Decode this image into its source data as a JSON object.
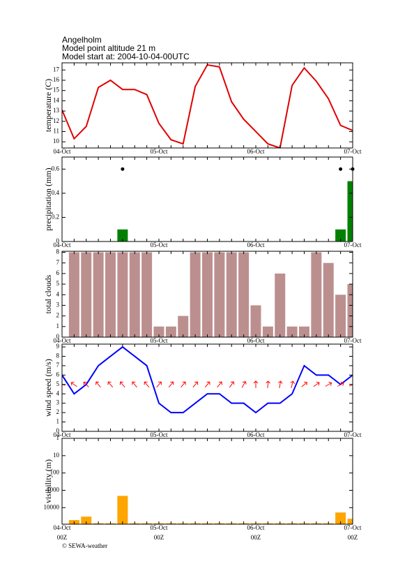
{
  "header": {
    "lines": [
      "Angelholm",
      "Model point altitude  21 m",
      "Model start at: 2004-10-04-00UTC"
    ]
  },
  "footer": "© SEWA-weather",
  "chart_data": [
    {
      "type": "line",
      "ylabel": "temperature (C)",
      "color": "#e00000",
      "categories": [
        "04-Oct",
        null,
        null,
        null,
        null,
        null,
        null,
        null,
        "05-Oct",
        null,
        null,
        null,
        null,
        null,
        null,
        null,
        "06-Oct",
        null,
        null,
        null,
        null,
        null,
        null,
        null,
        "07-Oct"
      ],
      "values": [
        13.1,
        10.3,
        11.5,
        15.3,
        16.0,
        15.1,
        15.1,
        14.6,
        11.8,
        10.2,
        9.8,
        15.4,
        17.5,
        17.3,
        13.9,
        12.2,
        11.0,
        9.8,
        9.4,
        15.5,
        17.2,
        15.9,
        14.2,
        11.6,
        11.1
      ],
      "ylim": [
        9.4,
        17.7
      ],
      "yticks": [
        10,
        11,
        12,
        13,
        14,
        15,
        16,
        17
      ]
    },
    {
      "type": "bar",
      "ylabel": "precipitation (mm)",
      "color": "#008000",
      "categories": [
        "04-Oct",
        null,
        null,
        null,
        null,
        null,
        null,
        null,
        "05-Oct",
        null,
        null,
        null,
        null,
        null,
        null,
        null,
        "06-Oct",
        null,
        null,
        null,
        null,
        null,
        null,
        null,
        "07-Oct"
      ],
      "values": [
        0,
        0,
        0,
        0,
        0,
        0.1,
        0,
        0,
        0,
        0,
        0,
        0,
        0,
        0,
        0,
        0,
        0,
        0,
        0,
        0,
        0,
        0,
        0,
        0.1,
        0.5
      ],
      "points": {
        "color": "#000000",
        "values": [
          null,
          null,
          null,
          null,
          null,
          0.6,
          null,
          null,
          null,
          null,
          null,
          null,
          null,
          null,
          null,
          null,
          null,
          null,
          null,
          null,
          null,
          null,
          null,
          0.6,
          0.6
        ]
      },
      "ylim": [
        0,
        0.7
      ],
      "yticks": [
        0,
        0.2,
        0.4,
        0.6
      ]
    },
    {
      "type": "bar",
      "ylabel": "total clouds",
      "color": "#bc8f8f",
      "categories": [
        "04-Oct",
        null,
        null,
        null,
        null,
        null,
        null,
        null,
        "05-Oct",
        null,
        null,
        null,
        null,
        null,
        null,
        null,
        "06-Oct",
        null,
        null,
        null,
        null,
        null,
        null,
        null,
        "07-Oct"
      ],
      "values": [
        null,
        8,
        8,
        8,
        8,
        8,
        8,
        8,
        1,
        1,
        2,
        8,
        8,
        8,
        8,
        8,
        3,
        1,
        6,
        1,
        1,
        8,
        7,
        4,
        5
      ],
      "ylim": [
        0,
        8.1
      ],
      "yticks": [
        0,
        1,
        2,
        3,
        4,
        5,
        6,
        7,
        8
      ]
    },
    {
      "type": "line",
      "ylabel": "wind speed (m/s)",
      "color": "#0000ff",
      "categories": [
        "04-Oct",
        null,
        null,
        null,
        null,
        null,
        null,
        null,
        "05-Oct",
        null,
        null,
        null,
        null,
        null,
        null,
        null,
        "06-Oct",
        null,
        null,
        null,
        null,
        null,
        null,
        null,
        "07-Oct"
      ],
      "values": [
        6,
        4,
        5,
        7,
        8,
        9,
        8,
        7,
        3,
        2,
        2,
        3,
        4,
        4,
        3,
        3,
        2,
        3,
        3,
        4,
        7,
        6,
        6,
        5,
        6
      ],
      "arrows": {
        "color": "#ff0000",
        "values": [
          -80,
          -55,
          -45,
          -40,
          -40,
          -40,
          -40,
          -40,
          40,
          40,
          40,
          40,
          40,
          40,
          35,
          30,
          0,
          5,
          10,
          15,
          50,
          55,
          60,
          60,
          65
        ]
      },
      "ylim": [
        0,
        9.3
      ],
      "yticks": [
        0,
        1,
        2,
        3,
        4,
        5,
        6,
        7,
        8,
        9
      ]
    },
    {
      "type": "bar",
      "ylabel": "visibility (m)",
      "color": "#ffa500",
      "log": true,
      "inverted": true,
      "categories": [
        "04-Oct",
        null,
        null,
        null,
        null,
        null,
        null,
        null,
        "05-Oct",
        null,
        null,
        null,
        null,
        null,
        null,
        null,
        "06-Oct",
        null,
        null,
        null,
        null,
        null,
        null,
        null,
        "07-Oct"
      ],
      "x_sublabels": [
        "00Z",
        null,
        null,
        null,
        null,
        null,
        null,
        null,
        "00Z",
        null,
        null,
        null,
        null,
        null,
        null,
        null,
        "00Z",
        null,
        null,
        null,
        null,
        null,
        null,
        null,
        "00Z"
      ],
      "values": [
        null,
        52000,
        33000,
        80000,
        80000,
        2100,
        80000,
        80000,
        80000,
        80000,
        80000,
        80000,
        80000,
        80000,
        80000,
        80000,
        80000,
        80000,
        80000,
        80000,
        80000,
        80000,
        80000,
        19000,
        44000
      ],
      "ylim": [
        1,
        90000
      ],
      "yticks": [
        1,
        10,
        100,
        1000,
        10000
      ]
    }
  ]
}
